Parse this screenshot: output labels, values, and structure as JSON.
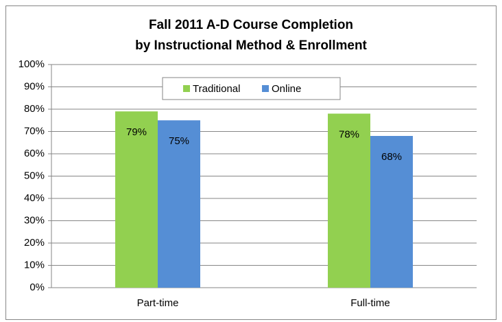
{
  "chart_data": {
    "type": "bar",
    "title": [
      "Fall 2011 A-D Course Completion",
      "by Instructional Method & Enrollment"
    ],
    "categories": [
      "Part-time",
      "Full-time"
    ],
    "series": [
      {
        "name": "Traditional",
        "color": "#92d050",
        "values": [
          79,
          78
        ],
        "value_labels": [
          "79%",
          "78%"
        ]
      },
      {
        "name": "Online",
        "color": "#558ed5",
        "values": [
          75,
          68
        ],
        "value_labels": [
          "75%",
          "68%"
        ]
      }
    ],
    "ylim": [
      0,
      100
    ],
    "yticks": [
      {
        "value": 0,
        "label": "0%"
      },
      {
        "value": 10,
        "label": "10%"
      },
      {
        "value": 20,
        "label": "20%"
      },
      {
        "value": 30,
        "label": "30%"
      },
      {
        "value": 40,
        "label": "40%"
      },
      {
        "value": 50,
        "label": "50%"
      },
      {
        "value": 60,
        "label": "60%"
      },
      {
        "value": 70,
        "label": "70%"
      },
      {
        "value": 80,
        "label": "80%"
      },
      {
        "value": 90,
        "label": "90%"
      },
      {
        "value": 100,
        "label": "100%"
      }
    ],
    "grid": true,
    "legend": "top"
  }
}
